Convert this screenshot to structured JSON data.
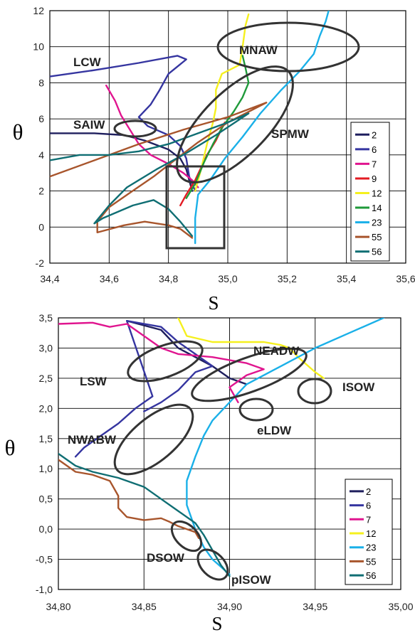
{
  "colors": {
    "2": "#1f1f5e",
    "6": "#3535a0",
    "7": "#e0158f",
    "9": "#e31b23",
    "12": "#f5f01e",
    "14": "#1f9a3a",
    "23": "#1ab0e8",
    "55": "#a8552c",
    "56": "#0f6e73"
  },
  "chart_data": [
    {
      "type": "line",
      "title": "",
      "xlabel": "S",
      "ylabel": "θ",
      "xlim": [
        34.4,
        35.6
      ],
      "ylim": [
        -2,
        12
      ],
      "x_ticks": [
        "34,4",
        "34,6",
        "34,8",
        "35,0",
        "35,2",
        "35,4",
        "35,6"
      ],
      "y_ticks": [
        "-2",
        "0",
        "2",
        "4",
        "6",
        "8",
        "10",
        "12"
      ],
      "grid": true,
      "legend": "bottom-right",
      "series": [
        {
          "name": "2",
          "points": [
            [
              34.4,
              5.2
            ],
            [
              34.55,
              5.2
            ],
            [
              34.65,
              5.1
            ],
            [
              34.72,
              4.8
            ],
            [
              34.8,
              4.3
            ],
            [
              34.84,
              3.8
            ],
            [
              34.86,
              3.2
            ],
            [
              34.87,
              2.6
            ],
            [
              34.88,
              2.0
            ]
          ]
        },
        {
          "name": "6",
          "points": [
            [
              34.4,
              8.35
            ],
            [
              34.55,
              8.7
            ],
            [
              34.7,
              9.1
            ],
            [
              34.83,
              9.5
            ],
            [
              34.86,
              9.3
            ],
            [
              34.8,
              8.5
            ],
            [
              34.77,
              7.6
            ],
            [
              34.74,
              6.8
            ],
            [
              34.7,
              6.1
            ],
            [
              34.73,
              5.6
            ],
            [
              34.8,
              5.1
            ],
            [
              34.84,
              4.5
            ],
            [
              34.86,
              3.8
            ],
            [
              34.87,
              2.8
            ],
            [
              34.89,
              2.0
            ]
          ]
        },
        {
          "name": "7",
          "points": [
            [
              34.59,
              7.85
            ],
            [
              34.62,
              7.0
            ],
            [
              34.64,
              6.2
            ],
            [
              34.67,
              5.4
            ],
            [
              34.7,
              4.6
            ],
            [
              34.74,
              4.0
            ],
            [
              34.8,
              3.5
            ],
            [
              34.85,
              3.0
            ],
            [
              34.88,
              2.6
            ],
            [
              34.9,
              2.2
            ]
          ]
        },
        {
          "name": "9",
          "points": [
            [
              34.84,
              1.2
            ],
            [
              34.86,
              1.8
            ],
            [
              34.89,
              2.6
            ],
            [
              34.91,
              3.3
            ],
            [
              34.93,
              4.0
            ],
            [
              34.96,
              4.8
            ],
            [
              34.99,
              5.8
            ]
          ]
        },
        {
          "name": "12",
          "points": [
            [
              34.89,
              2.0
            ],
            [
              34.91,
              3.2
            ],
            [
              34.93,
              4.6
            ],
            [
              34.95,
              5.8
            ],
            [
              34.96,
              6.6
            ],
            [
              34.96,
              7.6
            ],
            [
              34.98,
              8.5
            ],
            [
              35.04,
              9.0
            ],
            [
              35.05,
              10.0
            ],
            [
              35.06,
              11.2
            ],
            [
              35.07,
              11.8
            ]
          ]
        },
        {
          "name": "14",
          "points": [
            [
              34.86,
              1.6
            ],
            [
              34.89,
              2.4
            ],
            [
              34.92,
              3.6
            ],
            [
              34.95,
              4.6
            ],
            [
              34.98,
              5.5
            ],
            [
              35.02,
              6.4
            ],
            [
              35.05,
              7.2
            ],
            [
              35.07,
              8.0
            ],
            [
              35.06,
              8.8
            ],
            [
              35.05,
              9.5
            ]
          ]
        },
        {
          "name": "23",
          "points": [
            [
              34.89,
              -0.9
            ],
            [
              34.89,
              0.5
            ],
            [
              34.9,
              1.8
            ],
            [
              34.94,
              2.6
            ],
            [
              34.99,
              3.8
            ],
            [
              35.05,
              5.0
            ],
            [
              35.11,
              6.3
            ],
            [
              35.18,
              7.6
            ],
            [
              35.24,
              8.6
            ],
            [
              35.29,
              9.6
            ],
            [
              35.31,
              10.6
            ],
            [
              35.33,
              11.4
            ],
            [
              35.34,
              12.0
            ]
          ]
        },
        {
          "name": "55",
          "points": [
            [
              34.4,
              2.8
            ],
            [
              34.55,
              3.7
            ],
            [
              34.7,
              4.6
            ],
            [
              34.85,
              5.4
            ],
            [
              35.0,
              6.1
            ],
            [
              35.13,
              6.9
            ],
            [
              35.0,
              5.8
            ],
            [
              34.9,
              4.7
            ],
            [
              34.82,
              3.7
            ],
            [
              34.75,
              2.8
            ],
            [
              34.67,
              1.9
            ],
            [
              34.6,
              1.1
            ],
            [
              34.56,
              0.3
            ],
            [
              34.56,
              -0.3
            ],
            [
              34.65,
              0.1
            ],
            [
              34.72,
              0.3
            ],
            [
              34.8,
              0.1
            ],
            [
              34.84,
              -0.1
            ],
            [
              34.88,
              -0.6
            ]
          ]
        },
        {
          "name": "56",
          "points": [
            [
              34.4,
              3.7
            ],
            [
              34.5,
              4.0
            ],
            [
              34.6,
              4.0
            ],
            [
              34.7,
              4.2
            ],
            [
              34.8,
              4.6
            ],
            [
              34.9,
              5.2
            ],
            [
              35.0,
              5.8
            ],
            [
              35.07,
              6.3
            ],
            [
              34.96,
              5.1
            ],
            [
              34.86,
              4.1
            ],
            [
              34.76,
              3.2
            ],
            [
              34.66,
              2.2
            ],
            [
              34.6,
              1.2
            ],
            [
              34.55,
              0.2
            ],
            [
              34.58,
              0.5
            ],
            [
              34.68,
              1.2
            ],
            [
              34.75,
              1.5
            ],
            [
              34.8,
              1.0
            ],
            [
              34.84,
              0.3
            ],
            [
              34.87,
              -0.3
            ],
            [
              34.88,
              -0.5
            ]
          ]
        }
      ],
      "annotations": [
        {
          "label": "LCW",
          "x": 34.5,
          "y": 9.2
        },
        {
          "label": "MNAW",
          "x": 35.19,
          "y": 9.9
        },
        {
          "label": "SAIW",
          "x": 34.5,
          "y": 5.5
        },
        {
          "label": "SPMW",
          "x": 35.2,
          "y": 5.1
        }
      ]
    },
    {
      "type": "line",
      "title": "",
      "xlabel": "S",
      "ylabel": "θ",
      "xlim": [
        34.8,
        35.0
      ],
      "ylim": [
        -1,
        3.5
      ],
      "x_ticks": [
        "34,80",
        "34,85",
        "34,90",
        "34,95",
        "35,00"
      ],
      "y_ticks": [
        "-1,0",
        "-0,5",
        "0,0",
        "0,5",
        "1,0",
        "1,5",
        "2,0",
        "2,5",
        "3,0",
        "3,5"
      ],
      "grid": true,
      "legend": "bottom-right",
      "series": [
        {
          "name": "2",
          "points": [
            [
              34.84,
              3.45
            ],
            [
              34.86,
              3.3
            ],
            [
              34.87,
              3.0
            ],
            [
              34.88,
              2.85
            ],
            [
              34.89,
              2.7
            ],
            [
              34.9,
              2.5
            ],
            [
              34.91,
              2.4
            ]
          ]
        },
        {
          "name": "6",
          "points": [
            [
              34.85,
              1.95
            ],
            [
              34.86,
              2.1
            ],
            [
              34.87,
              2.3
            ],
            [
              34.88,
              2.6
            ],
            [
              34.89,
              2.7
            ],
            [
              34.88,
              2.9
            ],
            [
              34.87,
              3.1
            ],
            [
              34.86,
              3.35
            ],
            [
              34.84,
              3.45
            ],
            [
              34.855,
              2.2
            ],
            [
              34.845,
              2.0
            ],
            [
              34.835,
              1.75
            ],
            [
              34.825,
              1.55
            ],
            [
              34.815,
              1.35
            ],
            [
              34.81,
              1.2
            ]
          ]
        },
        {
          "name": "7",
          "points": [
            [
              34.8,
              3.4
            ],
            [
              34.82,
              3.42
            ],
            [
              34.83,
              3.35
            ],
            [
              34.84,
              3.4
            ],
            [
              34.85,
              3.2
            ],
            [
              34.86,
              3.0
            ],
            [
              34.87,
              2.9
            ],
            [
              34.89,
              2.85
            ],
            [
              34.9,
              2.8
            ],
            [
              34.91,
              2.75
            ],
            [
              34.92,
              2.65
            ],
            [
              34.91,
              2.55
            ],
            [
              34.9,
              2.35
            ],
            [
              34.905,
              2.1
            ]
          ]
        },
        {
          "name": "12",
          "points": [
            [
              34.87,
              3.5
            ],
            [
              34.875,
              3.2
            ],
            [
              34.89,
              3.1
            ],
            [
              34.92,
              3.1
            ],
            [
              34.93,
              3.05
            ],
            [
              34.935,
              3.0
            ],
            [
              34.94,
              2.85
            ],
            [
              34.95,
              2.6
            ],
            [
              34.955,
              2.5
            ]
          ]
        },
        {
          "name": "23",
          "points": [
            [
              34.9,
              -0.75
            ],
            [
              34.89,
              -0.5
            ],
            [
              34.885,
              -0.3
            ],
            [
              34.88,
              0.0
            ],
            [
              34.875,
              0.4
            ],
            [
              34.875,
              0.8
            ],
            [
              34.88,
              1.2
            ],
            [
              34.885,
              1.55
            ],
            [
              34.89,
              1.8
            ],
            [
              34.9,
              2.1
            ],
            [
              34.91,
              2.4
            ],
            [
              34.93,
              2.7
            ],
            [
              34.95,
              3.0
            ],
            [
              34.97,
              3.25
            ],
            [
              34.99,
              3.5
            ]
          ]
        },
        {
          "name": "55",
          "points": [
            [
              34.8,
              1.15
            ],
            [
              34.81,
              0.95
            ],
            [
              34.82,
              0.9
            ],
            [
              34.83,
              0.8
            ],
            [
              34.835,
              0.55
            ],
            [
              34.835,
              0.35
            ],
            [
              34.84,
              0.2
            ],
            [
              34.85,
              0.15
            ],
            [
              34.86,
              0.18
            ],
            [
              34.865,
              0.12
            ],
            [
              34.87,
              0.05
            ],
            [
              34.875,
              0.0
            ],
            [
              34.88,
              -0.05
            ],
            [
              34.882,
              -0.15
            ]
          ]
        },
        {
          "name": "56",
          "points": [
            [
              34.8,
              1.25
            ],
            [
              34.81,
              1.05
            ],
            [
              34.82,
              0.95
            ],
            [
              34.835,
              0.85
            ],
            [
              34.85,
              0.7
            ],
            [
              34.86,
              0.5
            ],
            [
              34.87,
              0.3
            ],
            [
              34.88,
              0.1
            ],
            [
              34.885,
              -0.1
            ],
            [
              34.89,
              -0.35
            ],
            [
              34.895,
              -0.6
            ],
            [
              34.9,
              -0.78
            ]
          ]
        }
      ],
      "annotations": [
        {
          "label": "LSW",
          "x": 34.83,
          "y": 2.9
        },
        {
          "label": "NEADW",
          "x": 34.925,
          "y": 3.25
        },
        {
          "label": "ISOW",
          "x": 34.975,
          "y": 2.65
        },
        {
          "label": "eLDW",
          "x": 34.92,
          "y": 1.95
        },
        {
          "label": "NWABW",
          "x": 34.82,
          "y": 1.75
        },
        {
          "label": "DSOW",
          "x": 34.865,
          "y": -0.35
        },
        {
          "label": "pISOW",
          "x": 34.915,
          "y": -0.8
        }
      ]
    }
  ]
}
